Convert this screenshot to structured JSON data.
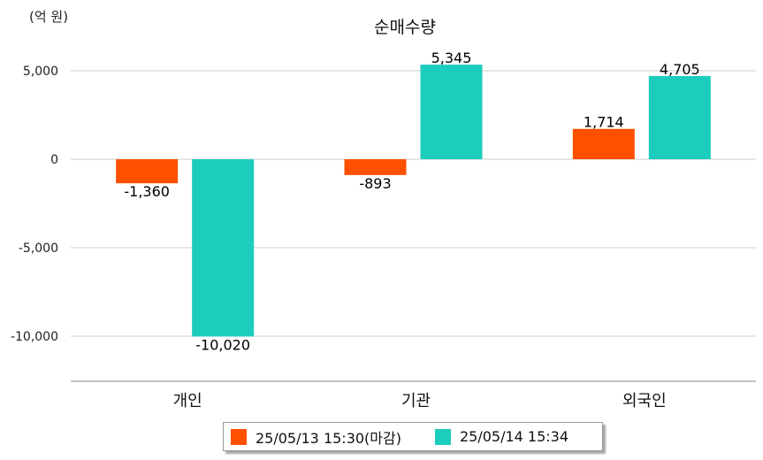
{
  "chart_data": {
    "type": "bar",
    "title": "순매수량",
    "unit_label": "(억 원)",
    "categories": [
      "개인",
      "기관",
      "외국인"
    ],
    "series": [
      {
        "name": "25/05/13 15:30(마감)",
        "color": "#ff5000",
        "values": [
          -1360,
          -893,
          1714
        ],
        "labels": [
          "-1,360",
          "-893",
          "1,714"
        ]
      },
      {
        "name": "25/05/14 15:34",
        "color": "#1ccdbd",
        "values": [
          -10020,
          5345,
          4705
        ],
        "labels": [
          "-10,020",
          "5,345",
          "4,705"
        ]
      }
    ],
    "yticks": [
      5000,
      0,
      -5000,
      -10000
    ],
    "ytick_labels": [
      "5,000",
      "0",
      "-5,000",
      "-10,000"
    ],
    "ylim": [
      -12500,
      6500
    ],
    "grid": true,
    "legend": "bottom"
  }
}
